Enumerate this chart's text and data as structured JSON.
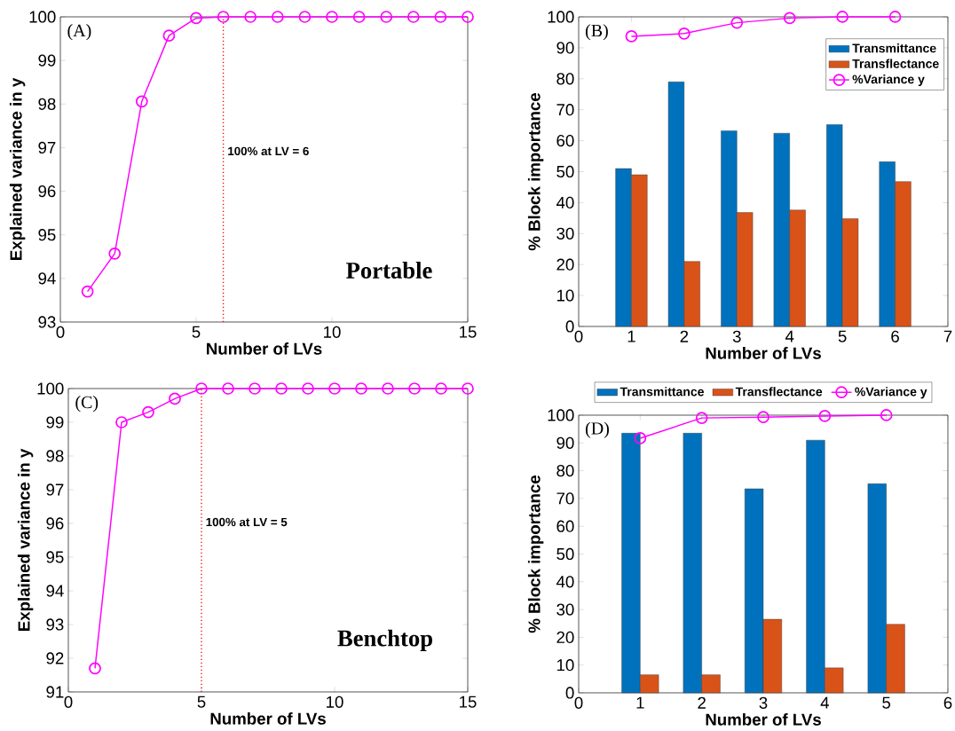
{
  "chart_data": [
    {
      "type": "line",
      "x": [
        1,
        2,
        3,
        4,
        5,
        6,
        7,
        8,
        9,
        10,
        11,
        12,
        13,
        14,
        15
      ],
      "series": [
        {
          "color": "#ff00ff",
          "values": [
            93.7,
            94.57,
            98.06,
            99.57,
            99.97,
            100,
            100,
            100,
            100,
            100,
            100,
            100,
            100,
            100,
            100
          ]
        }
      ],
      "marker": "circle",
      "xlim": [
        0,
        15
      ],
      "ylim": [
        93,
        100
      ],
      "xticks": [
        0,
        5,
        10,
        15
      ],
      "yticks": [
        93,
        94,
        95,
        96,
        97,
        98,
        99,
        100
      ],
      "xlabel": "Number of LVs",
      "ylabel": "Explained variance in y",
      "ref_lines": [
        {
          "axis": "x",
          "value": 6,
          "label": "100% at LV = 6",
          "color": "#ff0000",
          "line_style": "dotted"
        }
      ],
      "annotations": [
        "(A)",
        "Portable"
      ]
    },
    {
      "type": "bar",
      "x": [
        1,
        2,
        3,
        4,
        5,
        6
      ],
      "series": [
        {
          "name": "Transmittance",
          "color": "#0072bd",
          "values": [
            51,
            79,
            63.2,
            62.4,
            65.2,
            53.2
          ]
        },
        {
          "name": "Transflectance",
          "color": "#d95319",
          "values": [
            49,
            21,
            36.8,
            37.6,
            34.8,
            46.8
          ]
        },
        {
          "name": "%Variance y",
          "type": "line",
          "color": "#ff00ff",
          "values": [
            93.7,
            94.6,
            98.1,
            99.6,
            100,
            100
          ]
        }
      ],
      "marker": "circle",
      "legend": "top right",
      "xlim": [
        0,
        7
      ],
      "ylim": [
        0,
        100
      ],
      "xticks": [
        0,
        1,
        2,
        3,
        4,
        5,
        6,
        7
      ],
      "yticks": [
        0,
        10,
        20,
        30,
        40,
        50,
        60,
        70,
        80,
        90,
        100
      ],
      "xlabel": "Number of LVs",
      "ylabel": "% Block importance",
      "annotations": [
        "(B)"
      ]
    },
    {
      "type": "line",
      "x": [
        1,
        2,
        3,
        4,
        5,
        6,
        7,
        8,
        9,
        10,
        11,
        12,
        13,
        14,
        15
      ],
      "series": [
        {
          "color": "#ff00ff",
          "values": [
            91.7,
            99.0,
            99.3,
            99.7,
            100,
            100,
            100,
            100,
            100,
            100,
            100,
            100,
            100,
            100,
            100
          ]
        }
      ],
      "marker": "circle",
      "xlim": [
        0,
        15
      ],
      "ylim": [
        91,
        100
      ],
      "xticks": [
        0,
        5,
        10,
        15
      ],
      "yticks": [
        91,
        92,
        93,
        94,
        95,
        96,
        97,
        98,
        99,
        100
      ],
      "xlabel": "Number of LVs",
      "ylabel": "Explained variance in y",
      "ref_lines": [
        {
          "axis": "x",
          "value": 5,
          "label": "100% at LV = 5",
          "color": "#ff0000",
          "line_style": "dotted"
        }
      ],
      "annotations": [
        "(C)",
        "Benchtop"
      ]
    },
    {
      "type": "bar",
      "x": [
        1,
        2,
        3,
        4,
        5
      ],
      "series": [
        {
          "name": "Transmittance",
          "color": "#0072bd",
          "values": [
            93.5,
            93.5,
            73.5,
            91,
            75.3
          ]
        },
        {
          "name": "Transflectance",
          "color": "#d95319",
          "values": [
            6.5,
            6.5,
            26.5,
            9,
            24.7
          ]
        },
        {
          "name": "%Variance y",
          "type": "line",
          "color": "#ff00ff",
          "values": [
            91.7,
            99,
            99.3,
            99.7,
            100
          ]
        }
      ],
      "marker": "circle",
      "legend": "top",
      "xlim": [
        0,
        6
      ],
      "ylim": [
        0,
        100
      ],
      "xticks": [
        0,
        1,
        2,
        3,
        4,
        5,
        6
      ],
      "yticks": [
        0,
        10,
        20,
        30,
        40,
        50,
        60,
        70,
        80,
        90,
        100
      ],
      "xlabel": "Number of LVs",
      "ylabel": "% Block importance",
      "annotations": [
        "(D)"
      ]
    }
  ]
}
